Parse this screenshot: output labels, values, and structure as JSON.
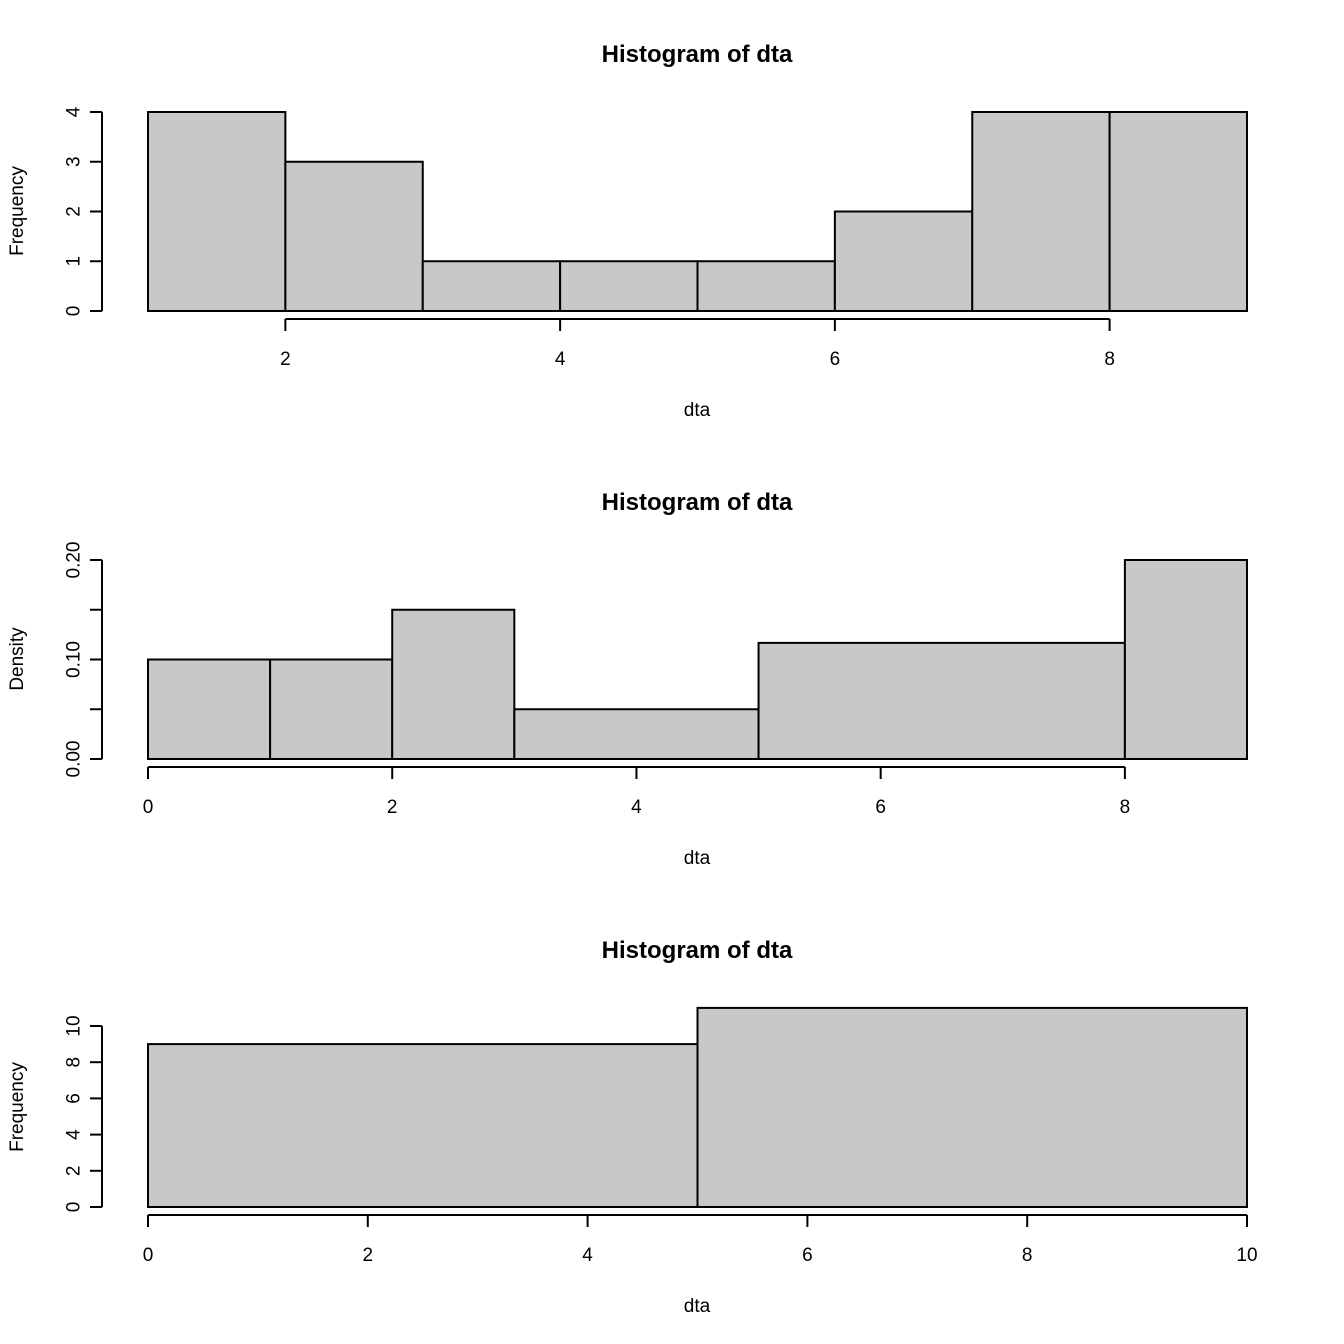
{
  "chart_data": [
    {
      "type": "bar",
      "title": "Histogram of dta",
      "xlabel": "dta",
      "ylabel": "Frequency",
      "breaks": [
        1,
        2,
        3,
        4,
        5,
        6,
        7,
        8,
        9
      ],
      "values": [
        4,
        3,
        1,
        1,
        1,
        2,
        4,
        4
      ],
      "xlim": [
        1,
        9
      ],
      "ylim": [
        0,
        4
      ],
      "xticks": [
        2,
        4,
        6,
        8
      ],
      "xtick_labels": [
        "2",
        "4",
        "6",
        "8"
      ],
      "yticks": [
        0,
        1,
        2,
        3,
        4
      ],
      "ytick_labels": [
        "0",
        "1",
        "2",
        "3",
        "4"
      ],
      "grid": false,
      "bar_color": "#c8c8c8"
    },
    {
      "type": "bar",
      "title": "Histogram of dta",
      "xlabel": "dta",
      "ylabel": "Density",
      "breaks": [
        0,
        1,
        2,
        3,
        5,
        8,
        9
      ],
      "values": [
        0.1,
        0.1,
        0.15,
        0.05,
        0.1167,
        0.2
      ],
      "xlim": [
        0,
        9
      ],
      "ylim": [
        0,
        0.2
      ],
      "xticks": [
        0,
        2,
        4,
        6,
        8
      ],
      "xtick_labels": [
        "0",
        "2",
        "4",
        "6",
        "8"
      ],
      "yticks": [
        0,
        0.05,
        0.1,
        0.15,
        0.2
      ],
      "ytick_labels": [
        "0.00",
        "",
        "0.10",
        "",
        "0.20"
      ],
      "grid": false,
      "bar_color": "#c8c8c8"
    },
    {
      "type": "bar",
      "title": "Histogram of dta",
      "xlabel": "dta",
      "ylabel": "Frequency",
      "breaks": [
        0,
        5,
        10
      ],
      "values": [
        9,
        11
      ],
      "xlim": [
        0,
        10
      ],
      "ylim": [
        0,
        10
      ],
      "xticks": [
        0,
        2,
        4,
        6,
        8,
        10
      ],
      "xtick_labels": [
        "0",
        "2",
        "4",
        "6",
        "8",
        "10"
      ],
      "yticks": [
        0,
        2,
        4,
        6,
        8,
        10
      ],
      "ytick_labels": [
        "0",
        "2",
        "4",
        "6",
        "8",
        "10"
      ],
      "grid": false,
      "bar_color": "#c8c8c8"
    }
  ]
}
